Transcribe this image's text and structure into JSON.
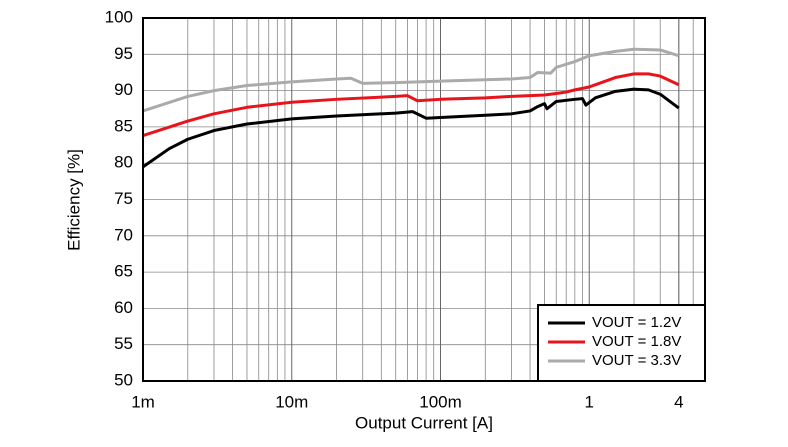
{
  "chart_data": {
    "type": "line",
    "x_label": "Output Current [A]",
    "y_label": "Efficiency [%]",
    "x_log": true,
    "grid": true,
    "legend": "lower right",
    "xlim": [
      0.001,
      6
    ],
    "ylim": [
      50,
      100
    ],
    "xticks": [
      {
        "value": 0.001,
        "label": "1m"
      },
      {
        "value": 0.01,
        "label": "10m"
      },
      {
        "value": 0.1,
        "label": "100m"
      },
      1,
      4
    ],
    "yticks": [
      50,
      55,
      60,
      65,
      70,
      75,
      80,
      85,
      90,
      95,
      100
    ],
    "series": [
      {
        "name": "VOUT = 1.2V",
        "color": "#000000",
        "x": [
          0.001,
          0.0015,
          0.002,
          0.003,
          0.005,
          0.01,
          0.02,
          0.05,
          0.065,
          0.08,
          0.1,
          0.2,
          0.3,
          0.4,
          0.45,
          0.5,
          0.52,
          0.6,
          0.8,
          0.9,
          0.95,
          1.1,
          1.5,
          2,
          2.5,
          3,
          4
        ],
        "values": [
          79.5,
          82,
          83.3,
          84.5,
          85.4,
          86.1,
          86.5,
          86.9,
          87.1,
          86.2,
          86.3,
          86.6,
          86.8,
          87.2,
          87.8,
          88.2,
          87.5,
          88.5,
          88.8,
          88.9,
          88.0,
          89.0,
          89.9,
          90.2,
          90.1,
          89.5,
          87.6
        ]
      },
      {
        "name": "VOUT = 1.8V",
        "color": "#e8141c",
        "x": [
          0.001,
          0.002,
          0.003,
          0.005,
          0.01,
          0.02,
          0.05,
          0.06,
          0.07,
          0.1,
          0.2,
          0.3,
          0.4,
          0.5,
          0.6,
          0.7,
          0.8,
          1,
          1.5,
          2,
          2.5,
          3,
          4
        ],
        "values": [
          83.8,
          85.8,
          86.8,
          87.7,
          88.4,
          88.8,
          89.2,
          89.3,
          88.6,
          88.8,
          89.0,
          89.2,
          89.3,
          89.4,
          89.6,
          89.8,
          90.1,
          90.5,
          91.8,
          92.3,
          92.3,
          92.0,
          90.8
        ]
      },
      {
        "name": "VOUT = 3.3V",
        "color": "#aaaaaa",
        "x": [
          0.001,
          0.002,
          0.003,
          0.005,
          0.01,
          0.02,
          0.025,
          0.03,
          0.05,
          0.1,
          0.2,
          0.3,
          0.4,
          0.45,
          0.55,
          0.6,
          0.8,
          1,
          1.5,
          2,
          3,
          4
        ],
        "values": [
          87.2,
          89.2,
          90.0,
          90.7,
          91.2,
          91.6,
          91.7,
          91.0,
          91.1,
          91.3,
          91.5,
          91.6,
          91.8,
          92.5,
          92.4,
          93.2,
          94.0,
          94.8,
          95.4,
          95.7,
          95.6,
          94.8
        ]
      }
    ]
  }
}
